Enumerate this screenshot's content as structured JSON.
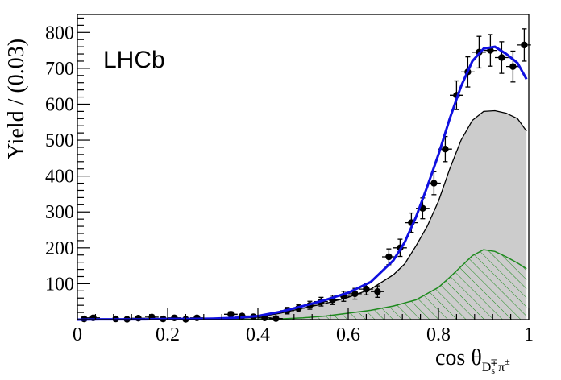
{
  "chart_data": {
    "type": "scatter",
    "annotation": "LHCb",
    "ylabel": "Yield / (0.03)",
    "xlabel_main": "cos θ",
    "xlabel_sub": "D",
    "xlabel_sub_s": "s",
    "xlabel_sub_pm": "∓",
    "xlabel_sub_tail": "π",
    "xlabel_sub_tail_pm": "±",
    "xlim": [
      0,
      1
    ],
    "ylim": [
      0,
      850
    ],
    "x_ticks": [
      "0",
      "0.2",
      "0.4",
      "0.6",
      "0.8",
      "1"
    ],
    "y_ticks": [
      "100",
      "200",
      "300",
      "400",
      "500",
      "600",
      "700",
      "800"
    ],
    "colors": {
      "data": "#000000",
      "fit": "#1010e0",
      "gray_fill": "#cccccc",
      "green": "#1e8a1e"
    },
    "data_points": {
      "x": [
        0.015,
        0.035,
        0.085,
        0.11,
        0.135,
        0.165,
        0.19,
        0.215,
        0.24,
        0.265,
        0.34,
        0.365,
        0.39,
        0.415,
        0.44,
        0.465,
        0.49,
        0.515,
        0.54,
        0.565,
        0.59,
        0.615,
        0.64,
        0.665,
        0.69,
        0.715,
        0.74,
        0.765,
        0.79,
        0.815,
        0.84,
        0.865,
        0.89,
        0.915,
        0.94,
        0.965,
        0.99
      ],
      "y": [
        2,
        5,
        2,
        1,
        4,
        7,
        2,
        5,
        1,
        5,
        15,
        10,
        8,
        5,
        3,
        25,
        32,
        40,
        50,
        55,
        65,
        72,
        85,
        78,
        175,
        200,
        270,
        310,
        380,
        475,
        625,
        690,
        745,
        750,
        730,
        705,
        765
      ],
      "yerr": [
        4,
        5,
        4,
        3,
        5,
        6,
        4,
        5,
        3,
        5,
        7,
        6,
        6,
        5,
        4,
        9,
        10,
        11,
        12,
        13,
        14,
        15,
        16,
        16,
        22,
        24,
        27,
        29,
        32,
        35,
        40,
        42,
        44,
        44,
        44,
        43,
        45
      ]
    },
    "total_fit": {
      "x": [
        0,
        0.05,
        0.1,
        0.15,
        0.2,
        0.25,
        0.3,
        0.35,
        0.4,
        0.45,
        0.5,
        0.55,
        0.6,
        0.65,
        0.7,
        0.725,
        0.75,
        0.775,
        0.8,
        0.825,
        0.85,
        0.875,
        0.9,
        0.925,
        0.95,
        0.975,
        0.995
      ],
      "y": [
        0,
        1,
        1,
        1,
        2,
        2,
        3,
        5,
        10,
        22,
        38,
        55,
        75,
        105,
        165,
        215,
        285,
        370,
        460,
        560,
        650,
        720,
        755,
        760,
        740,
        715,
        670
      ]
    },
    "gray_component": {
      "x": [
        0,
        0.1,
        0.2,
        0.3,
        0.35,
        0.4,
        0.45,
        0.5,
        0.55,
        0.6,
        0.65,
        0.7,
        0.725,
        0.75,
        0.775,
        0.8,
        0.825,
        0.85,
        0.875,
        0.9,
        0.925,
        0.95,
        0.975,
        0.995
      ],
      "y": [
        0,
        1,
        1,
        2,
        3,
        7,
        18,
        32,
        45,
        62,
        85,
        125,
        155,
        205,
        260,
        330,
        420,
        500,
        555,
        580,
        582,
        575,
        560,
        525
      ]
    },
    "green_component": {
      "x": [
        0,
        0.3,
        0.4,
        0.45,
        0.5,
        0.55,
        0.6,
        0.65,
        0.7,
        0.75,
        0.8,
        0.825,
        0.85,
        0.875,
        0.9,
        0.925,
        0.95,
        0.975,
        0.995
      ],
      "y": [
        0,
        0,
        1,
        2,
        5,
        10,
        18,
        26,
        38,
        55,
        90,
        118,
        148,
        178,
        195,
        190,
        175,
        158,
        142
      ]
    }
  }
}
